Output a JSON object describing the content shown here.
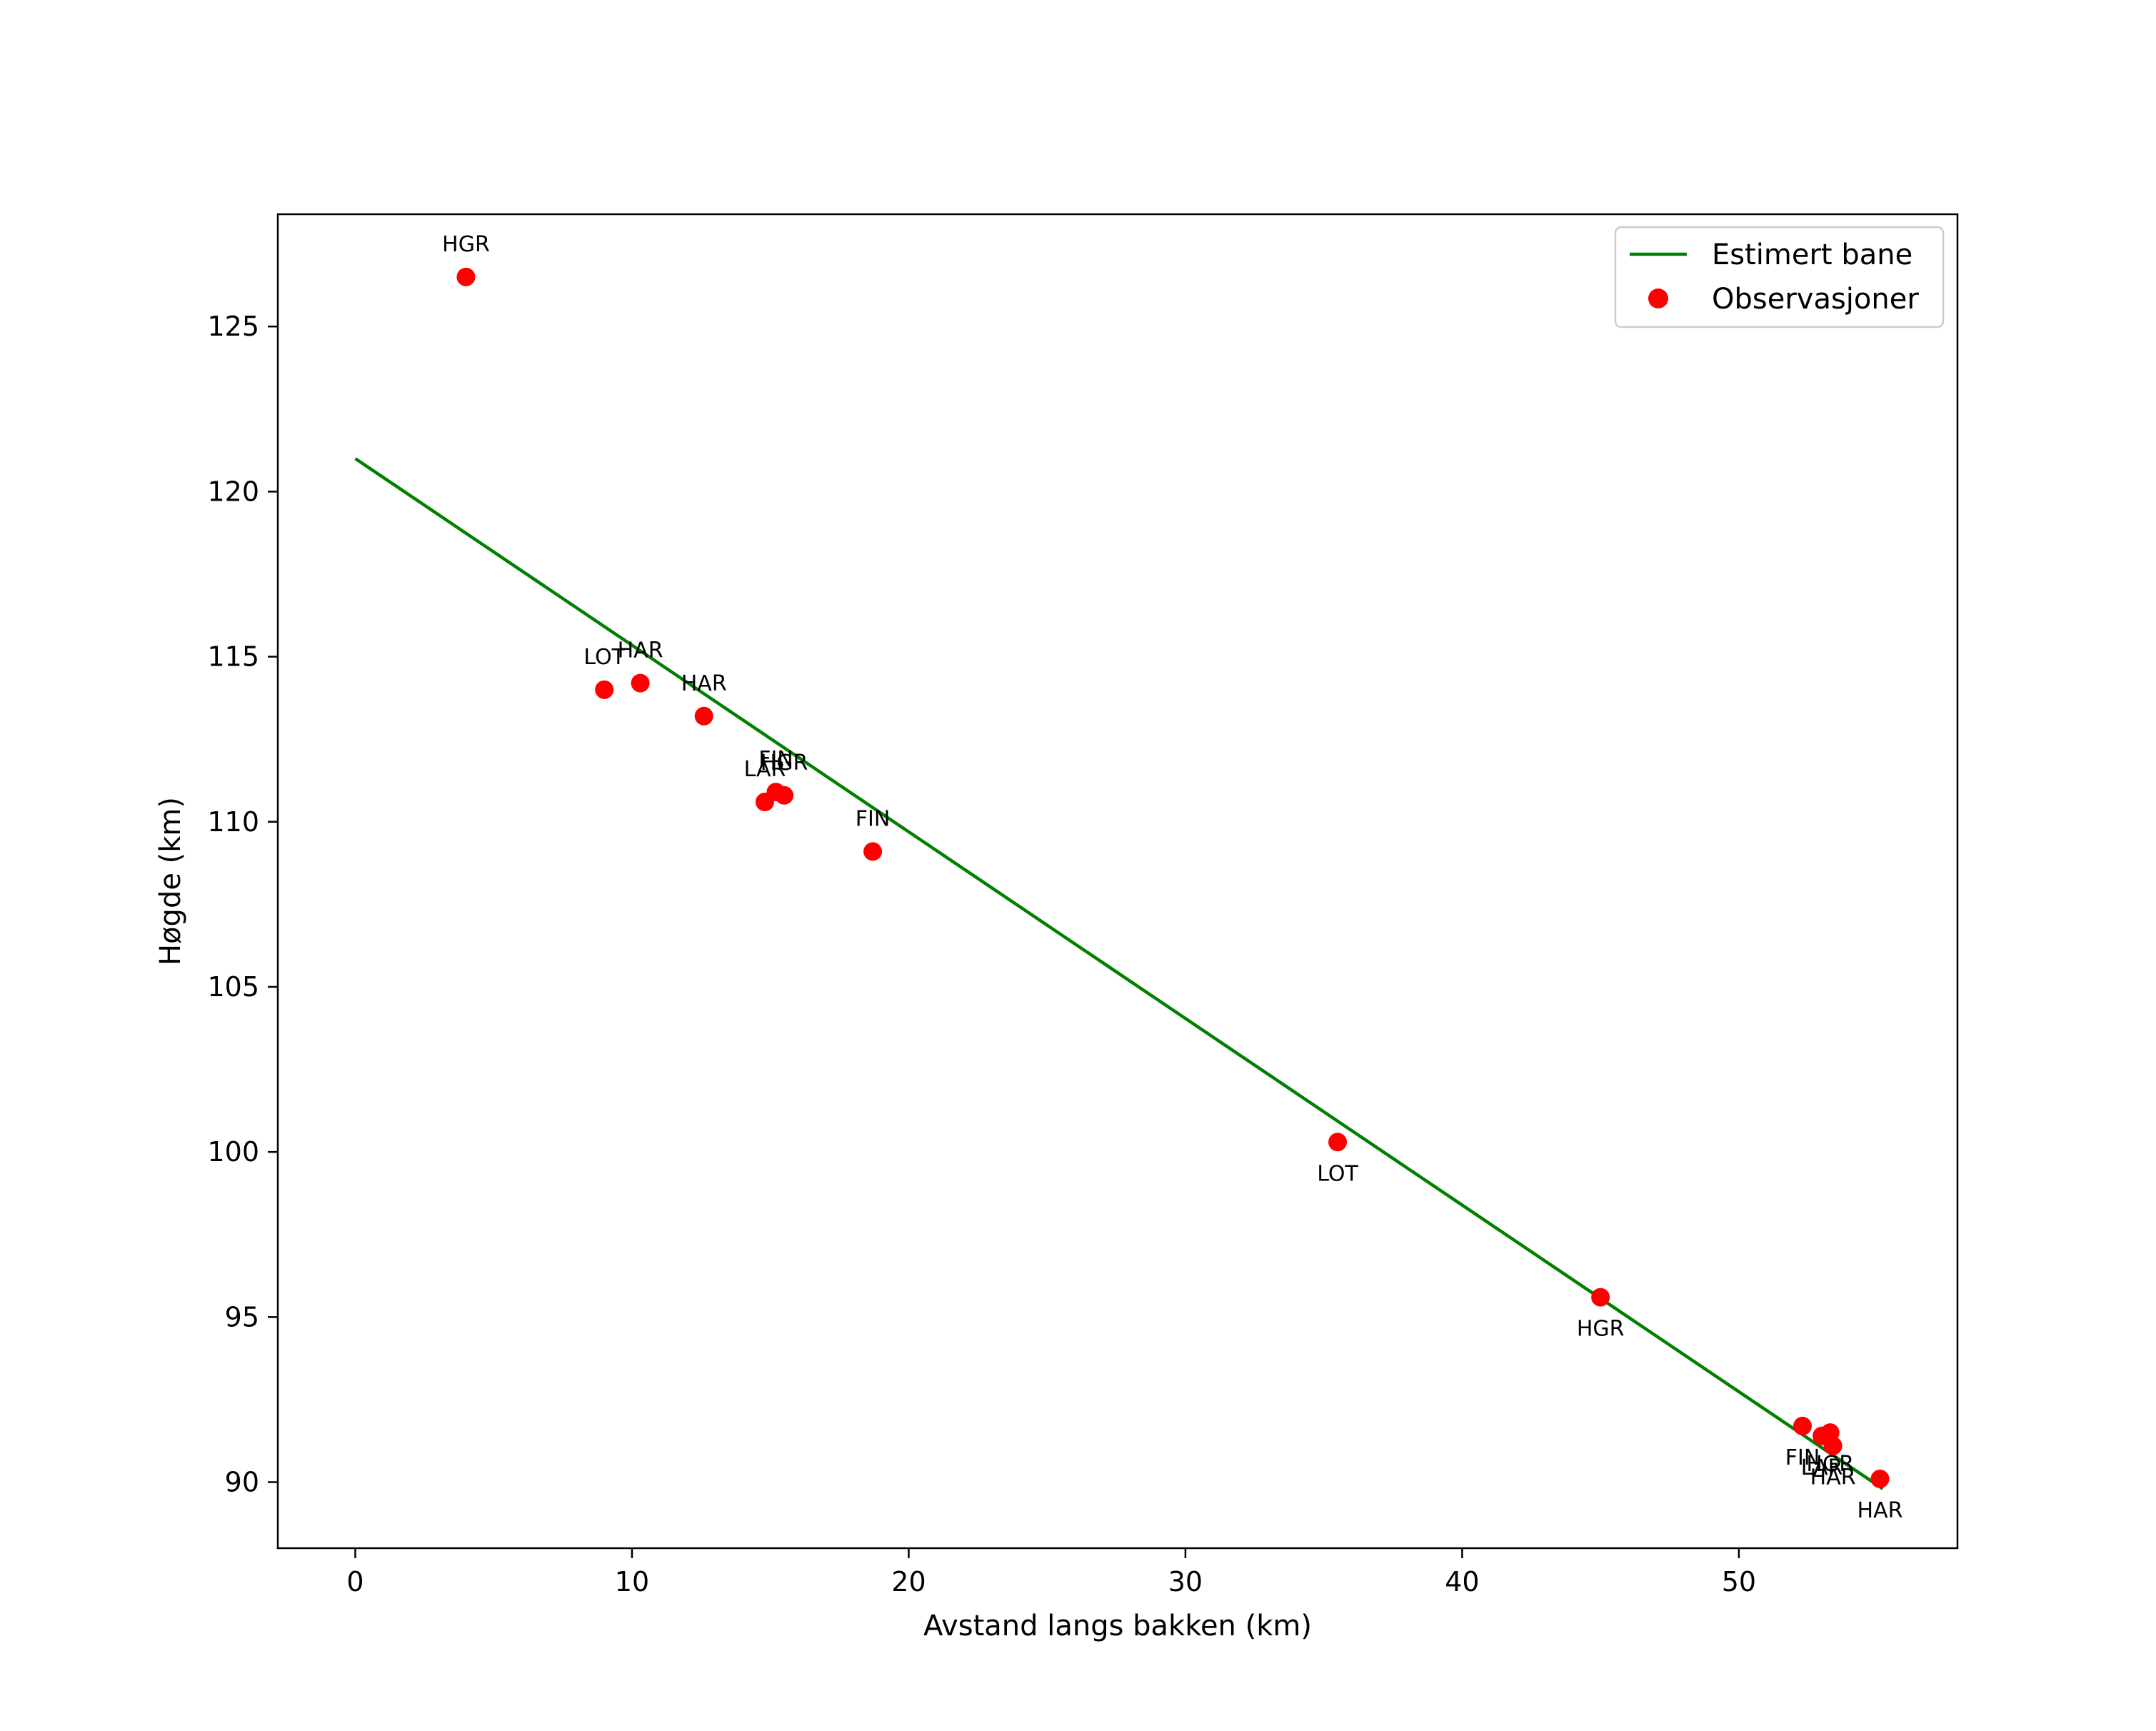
{
  "chart_data": {
    "type": "scatter",
    "title": "",
    "xlabel": "Avstand langs bakken (km)",
    "ylabel": "Høgde (km)",
    "xlim": [
      -2.8,
      57.9
    ],
    "ylim": [
      88.0,
      128.4
    ],
    "xticks": [
      0,
      10,
      20,
      30,
      40,
      50
    ],
    "yticks": [
      90,
      95,
      100,
      105,
      110,
      115,
      120,
      125
    ],
    "legend_location": "top-right",
    "grid": false,
    "series": [
      {
        "name": "Estimert bane",
        "kind": "line",
        "color": "#008000",
        "x": [
          0,
          55.2
        ],
        "y": [
          121.0,
          89.8
        ]
      },
      {
        "name": "Observasjoner",
        "kind": "scatter",
        "color": "#ff0000",
        "points": [
          {
            "x": 4.0,
            "y": 126.5,
            "label": "HGR",
            "pos": "above"
          },
          {
            "x": 9.0,
            "y": 114.0,
            "label": "LOT",
            "pos": "above"
          },
          {
            "x": 10.3,
            "y": 114.2,
            "label": "HAR",
            "pos": "above"
          },
          {
            "x": 12.6,
            "y": 113.2,
            "label": "HAR",
            "pos": "above"
          },
          {
            "x": 14.8,
            "y": 110.6,
            "label": "LAR",
            "pos": "above"
          },
          {
            "x": 15.2,
            "y": 110.9,
            "label": "FIN",
            "pos": "above"
          },
          {
            "x": 15.5,
            "y": 110.8,
            "label": "HGR",
            "pos": "above"
          },
          {
            "x": 18.7,
            "y": 109.1,
            "label": "FIN",
            "pos": "above"
          },
          {
            "x": 35.5,
            "y": 100.3,
            "label": "LOT",
            "pos": "below"
          },
          {
            "x": 45.0,
            "y": 95.6,
            "label": "HGR",
            "pos": "below"
          },
          {
            "x": 52.3,
            "y": 91.7,
            "label": "FIN",
            "pos": "below"
          },
          {
            "x": 53.0,
            "y": 91.4,
            "label": "LAR",
            "pos": "below"
          },
          {
            "x": 53.3,
            "y": 91.5,
            "label": "HGR",
            "pos": "below"
          },
          {
            "x": 53.4,
            "y": 91.1,
            "label": "HAR",
            "pos": "below"
          },
          {
            "x": 55.1,
            "y": 90.1,
            "label": "HAR",
            "pos": "below"
          }
        ]
      }
    ]
  }
}
